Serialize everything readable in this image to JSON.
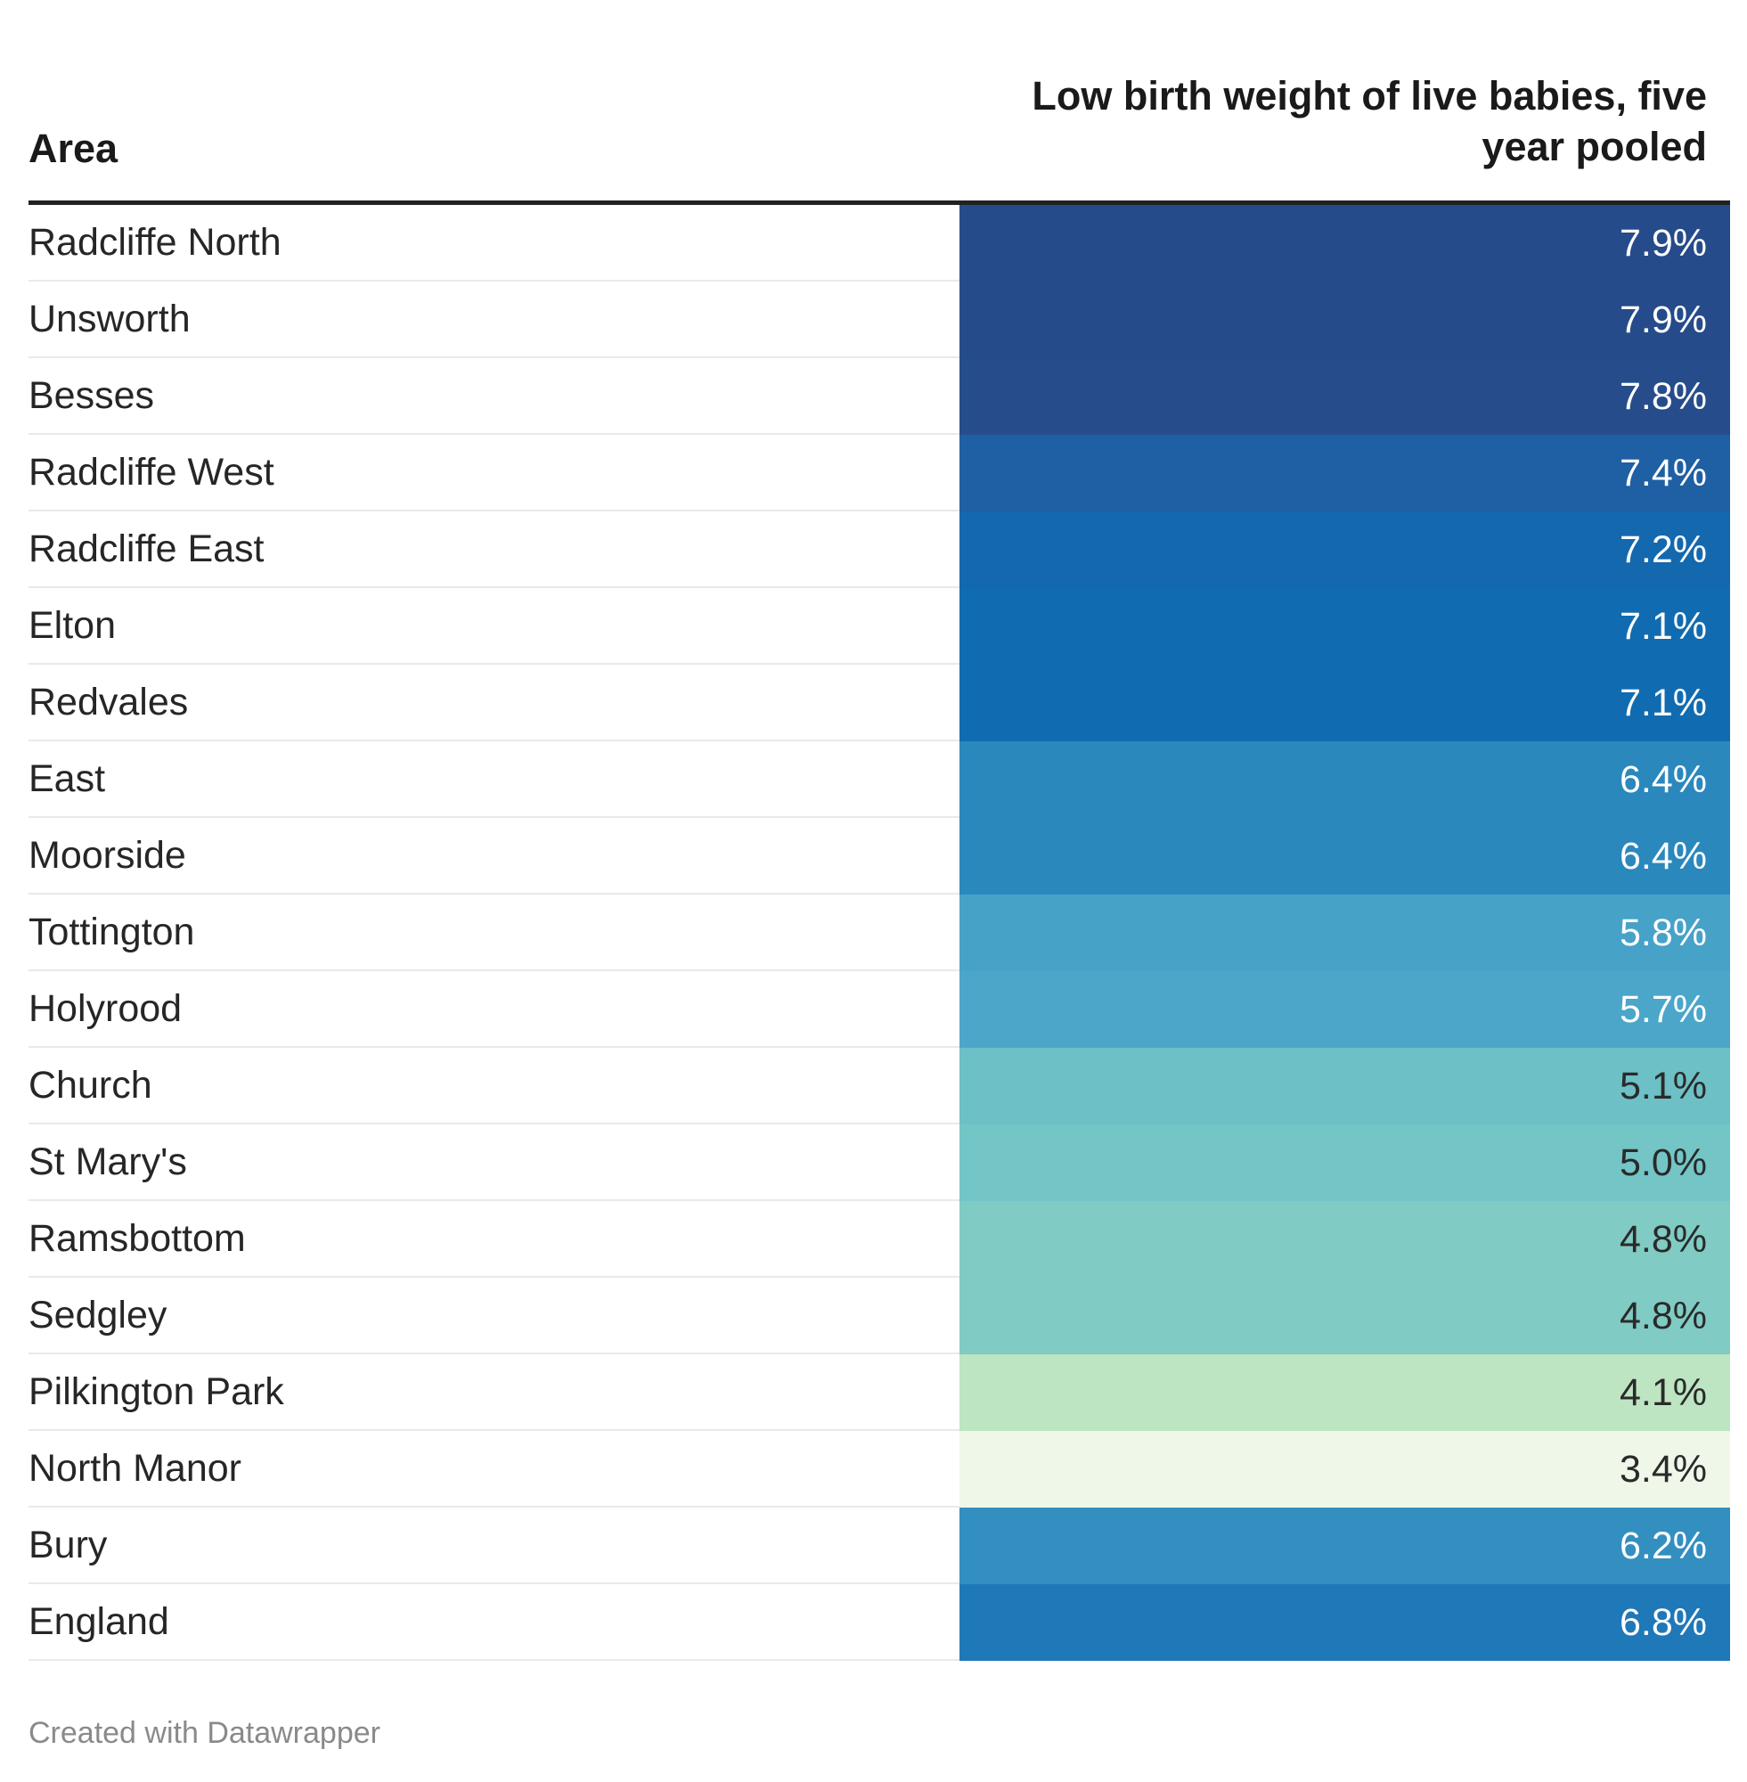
{
  "chart_data": {
    "type": "table",
    "columns": [
      "Area",
      "Low birth weight of live babies, five year pooled"
    ],
    "rows": [
      {
        "area": "Radcliffe North",
        "value": 7.9,
        "label": "7.9%",
        "color": "#264b8a"
      },
      {
        "area": "Unsworth",
        "value": 7.9,
        "label": "7.9%",
        "color": "#264b8a"
      },
      {
        "area": "Besses",
        "value": 7.8,
        "label": "7.8%",
        "color": "#264c8b"
      },
      {
        "area": "Radcliffe West",
        "value": 7.4,
        "label": "7.4%",
        "color": "#1f5fa3"
      },
      {
        "area": "Radcliffe East",
        "value": 7.2,
        "label": "7.2%",
        "color": "#1468ae"
      },
      {
        "area": "Elton",
        "value": 7.1,
        "label": "7.1%",
        "color": "#116bb0"
      },
      {
        "area": "Redvales",
        "value": 7.1,
        "label": "7.1%",
        "color": "#116bb0"
      },
      {
        "area": "East",
        "value": 6.4,
        "label": "6.4%",
        "color": "#2b88bd"
      },
      {
        "area": "Moorside",
        "value": 6.4,
        "label": "6.4%",
        "color": "#2b88bd"
      },
      {
        "area": "Tottington",
        "value": 5.8,
        "label": "5.8%",
        "color": "#47a2c8"
      },
      {
        "area": "Holyrood",
        "value": 5.7,
        "label": "5.7%",
        "color": "#4ba6ca"
      },
      {
        "area": "Church",
        "value": 5.1,
        "label": "5.1%",
        "color": "#6cc0c6"
      },
      {
        "area": "St Mary's",
        "value": 5.0,
        "label": "5.0%",
        "color": "#74c5c6"
      },
      {
        "area": "Ramsbottom",
        "value": 4.8,
        "label": "4.8%",
        "color": "#80cbc3"
      },
      {
        "area": "Sedgley",
        "value": 4.8,
        "label": "4.8%",
        "color": "#80cbc3"
      },
      {
        "area": "Pilkington Park",
        "value": 4.1,
        "label": "4.1%",
        "color": "#bde5c2"
      },
      {
        "area": "North Manor",
        "value": 3.4,
        "label": "3.4%",
        "color": "#eef7e8"
      },
      {
        "area": "Bury",
        "value": 6.2,
        "label": "6.2%",
        "color": "#348fc1"
      },
      {
        "area": "England",
        "value": 6.8,
        "label": "6.8%",
        "color": "#1f78b8"
      }
    ]
  },
  "footer": {
    "credit": "Created with Datawrapper"
  }
}
